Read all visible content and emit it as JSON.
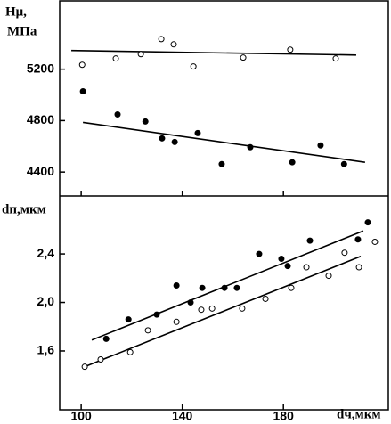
{
  "chart_data": [
    {
      "type": "scatter",
      "ylabel": "Hμ,",
      "yunit": "МПа",
      "xlim": [
        91.5,
        221.5
      ],
      "ylim": [
        4214,
        5731
      ],
      "yticks": [
        4400,
        4800,
        5200
      ],
      "series": [
        {
          "marker": "open",
          "color": "#000000",
          "x": [
            100.4,
            113.7,
            123.6,
            131.7,
            136.6,
            144.4,
            164.1,
            182.7,
            200.7
          ],
          "values": [
            5234,
            5283,
            5317,
            5434,
            5393,
            5221,
            5290,
            5352,
            5283
          ]
        },
        {
          "marker": "filled",
          "color": "#000000",
          "x": [
            100.7,
            114.4,
            125.4,
            132.0,
            137.0,
            146.1,
            155.6,
            166.9,
            183.5,
            194.7,
            204.0
          ],
          "values": [
            5028,
            4848,
            4793,
            4662,
            4634,
            4703,
            4462,
            4593,
            4476,
            4607,
            4462
          ]
        }
      ],
      "lines": [
        {
          "x": [
            96.1,
            208.8
          ],
          "values": [
            5345,
            5310
          ]
        },
        {
          "x": [
            100.7,
            212.3
          ],
          "values": [
            4786,
            4476
          ]
        }
      ]
    },
    {
      "type": "scatter",
      "ylabel": "dп,мкм",
      "xlabel": "dч,мкм",
      "xlim": [
        91.5,
        221.5
      ],
      "xticks": [
        100,
        140,
        180
      ],
      "ylim": [
        1.115,
        2.878
      ],
      "yticks": [
        {
          "value": 1.6,
          "label": "1,6"
        },
        {
          "value": 2.0,
          "label": "2,0"
        },
        {
          "value": 2.4,
          "label": "2,4"
        }
      ],
      "series": [
        {
          "marker": "filled",
          "color": "#000000",
          "x": [
            109.9,
            118.7,
            129.9,
            137.7,
            143.3,
            147.9,
            156.7,
            161.6,
            170.4,
            179.2,
            181.7,
            190.5,
            209.5,
            213.4
          ],
          "values": [
            1.7,
            1.86,
            1.9,
            2.14,
            2.0,
            2.12,
            2.12,
            2.12,
            2.4,
            2.36,
            2.3,
            2.51,
            2.52,
            2.66
          ]
        },
        {
          "marker": "open",
          "color": "#000000",
          "x": [
            101.4,
            107.7,
            119.4,
            126.4,
            137.7,
            147.5,
            151.8,
            163.7,
            172.9,
            183.1,
            189.1,
            197.9,
            204.2,
            209.9,
            216.2
          ],
          "values": [
            1.47,
            1.53,
            1.59,
            1.77,
            1.84,
            1.94,
            1.95,
            1.95,
            2.03,
            2.12,
            2.29,
            2.22,
            2.41,
            2.29,
            2.5
          ]
        }
      ],
      "lines": [
        {
          "x": [
            104.2,
            211.6
          ],
          "values": [
            1.69,
            2.59
          ]
        },
        {
          "x": [
            101.4,
            210.6
          ],
          "values": [
            1.47,
            2.38
          ]
        }
      ]
    }
  ]
}
